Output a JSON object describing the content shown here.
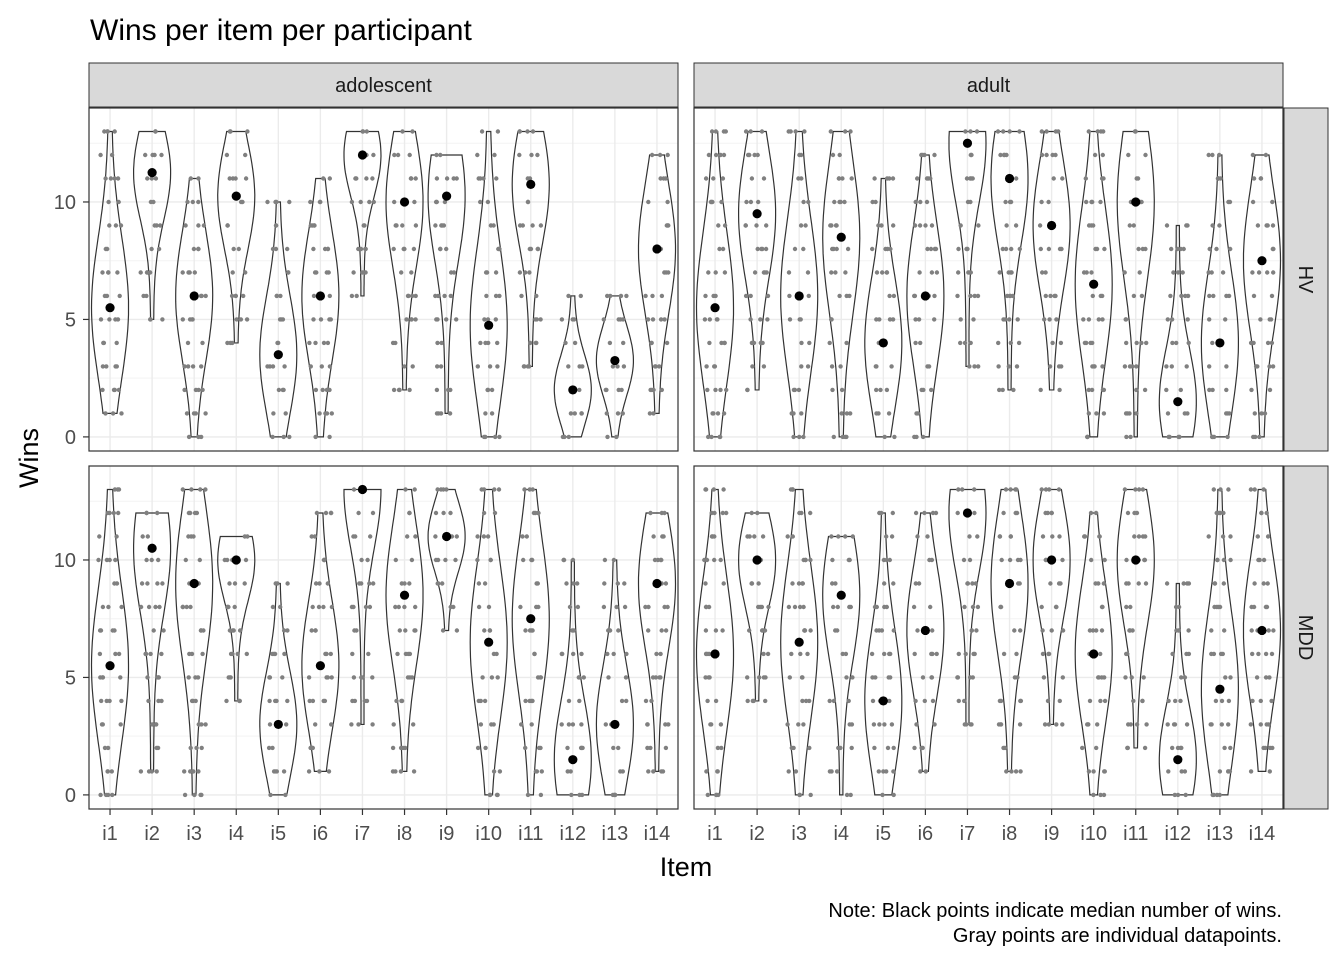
{
  "chart_data": {
    "type": "violin",
    "title": "Wins per item per participant",
    "xlabel": "Item",
    "ylabel": "Wins",
    "caption": [
      "Note: Black points indicate median number of wins.",
      "Gray points are individual datapoints."
    ],
    "categories": [
      "i1",
      "i2",
      "i3",
      "i4",
      "i5",
      "i6",
      "i7",
      "i8",
      "i9",
      "i10",
      "i11",
      "i12",
      "i13",
      "i14"
    ],
    "ylim": [
      -0.6,
      14.0
    ],
    "y_ticks": [
      0,
      5,
      10
    ],
    "grid": true,
    "facet_columns": [
      "adolescent",
      "adult"
    ],
    "facet_rows": [
      "HV",
      "MDD"
    ],
    "colors": {
      "median_point": "#000000",
      "data_point": "#808080",
      "violin_outline": "#333333",
      "strip": "#d9d9d9",
      "grid": "#ebebeb"
    },
    "panels": [
      {
        "column": "adolescent",
        "row": "HV",
        "medians": [
          5.5,
          11.25,
          6,
          10.25,
          3.5,
          6,
          12,
          10,
          10.25,
          4.75,
          10.75,
          2,
          3.25,
          8
        ],
        "ranges": [
          [
            1,
            13
          ],
          [
            5,
            13
          ],
          [
            0,
            11
          ],
          [
            4,
            13
          ],
          [
            0,
            10
          ],
          [
            0,
            11
          ],
          [
            6,
            13
          ],
          [
            2,
            13
          ],
          [
            1,
            12
          ],
          [
            0,
            13
          ],
          [
            3,
            13
          ],
          [
            0,
            6
          ],
          [
            0,
            6
          ],
          [
            1,
            12
          ]
        ]
      },
      {
        "column": "adult",
        "row": "HV",
        "medians": [
          5.5,
          9.5,
          6,
          8.5,
          4,
          6,
          12.5,
          11,
          9,
          6.5,
          10,
          1.5,
          4,
          7.5
        ],
        "ranges": [
          [
            0,
            13
          ],
          [
            2,
            13
          ],
          [
            0,
            13
          ],
          [
            0,
            13
          ],
          [
            0,
            11
          ],
          [
            0,
            12
          ],
          [
            3,
            13
          ],
          [
            2,
            13
          ],
          [
            2,
            13
          ],
          [
            0,
            13
          ],
          [
            0,
            13
          ],
          [
            0,
            9
          ],
          [
            0,
            12
          ],
          [
            0,
            12
          ]
        ]
      },
      {
        "column": "adolescent",
        "row": "MDD",
        "medians": [
          5.5,
          10.5,
          9,
          10,
          3,
          5.5,
          13,
          8.5,
          11,
          6.5,
          7.5,
          1.5,
          3,
          9
        ],
        "ranges": [
          [
            0,
            13
          ],
          [
            1,
            12
          ],
          [
            0,
            13
          ],
          [
            4,
            11
          ],
          [
            0,
            9
          ],
          [
            1,
            12
          ],
          [
            3,
            13
          ],
          [
            1,
            13
          ],
          [
            7,
            13
          ],
          [
            0,
            13
          ],
          [
            0,
            13
          ],
          [
            0,
            10
          ],
          [
            0,
            10
          ],
          [
            1,
            12
          ]
        ]
      },
      {
        "column": "adult",
        "row": "MDD",
        "medians": [
          6,
          10,
          6.5,
          8.5,
          4,
          7,
          12,
          9,
          10,
          6,
          10,
          1.5,
          4.5,
          7
        ],
        "ranges": [
          [
            0,
            13
          ],
          [
            4,
            12
          ],
          [
            0,
            13
          ],
          [
            0,
            11
          ],
          [
            0,
            12
          ],
          [
            1,
            12
          ],
          [
            3,
            13
          ],
          [
            1,
            13
          ],
          [
            3,
            13
          ],
          [
            0,
            12
          ],
          [
            2,
            13
          ],
          [
            0,
            9
          ],
          [
            0,
            13
          ],
          [
            1,
            13
          ]
        ]
      }
    ]
  }
}
